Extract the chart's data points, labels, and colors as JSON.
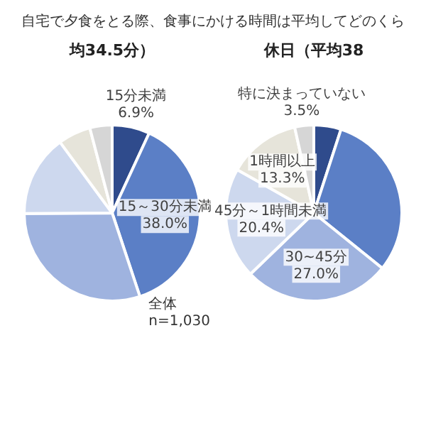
{
  "chart_data": [
    {
      "type": "pie",
      "title": "自宅で夕食をとる際、食事にかける時間は平均してどのくら",
      "subtitle": "均34.5分）",
      "annotations": [
        "全体",
        "n=1,030"
      ],
      "categories": [
        "15分未満",
        "15～30分未満",
        null,
        null,
        null,
        null
      ],
      "values": [
        6.9,
        38.0,
        30.0,
        15.0,
        6.0,
        4.1
      ],
      "value_labels": [
        "6.9%",
        "38.0%",
        null,
        null,
        null,
        null
      ],
      "colors": [
        "#2f4b8c",
        "#5b7fc6",
        "#9fb3df",
        "#cdd8ee",
        "#e6e4da",
        "#d6d6d6"
      ]
    },
    {
      "type": "pie",
      "title": "休日（平均38",
      "categories": [
        null,
        null,
        "30~45分",
        "45分～1時間未満",
        "1時間以上",
        "特に決まっていない"
      ],
      "values": [
        5.0,
        30.8,
        27.0,
        20.4,
        13.3,
        3.5
      ],
      "value_labels": [
        null,
        null,
        "27.0%",
        "20.4%",
        "13.3%",
        "3.5%"
      ],
      "colors": [
        "#2f4b8c",
        "#5b7fc6",
        "#9fb3df",
        "#cdd8ee",
        "#e6e4da",
        "#d6d6d6"
      ]
    }
  ]
}
